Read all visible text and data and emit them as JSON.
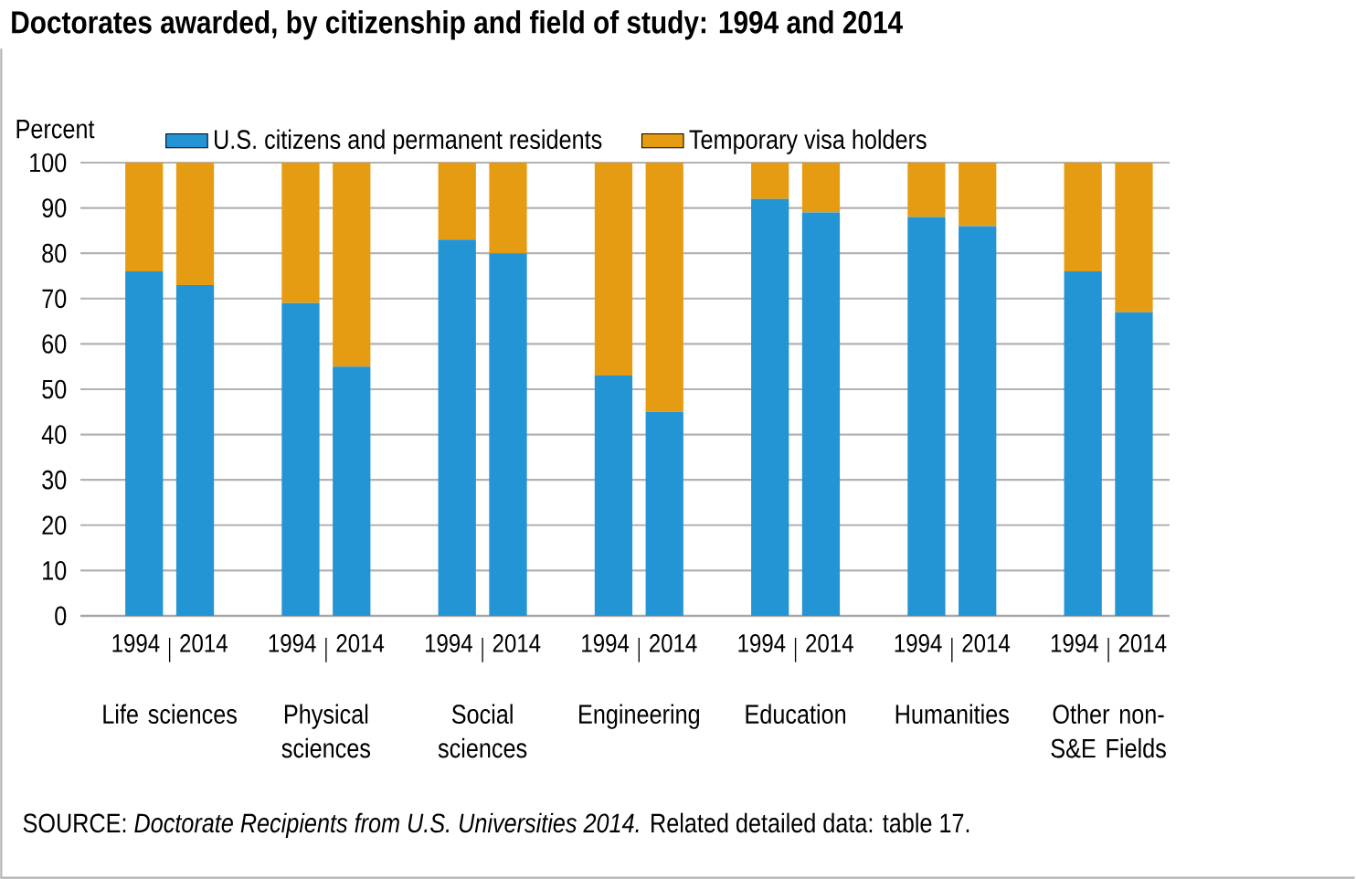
{
  "chart_data": {
    "type": "bar",
    "stacked": true,
    "title": "Doctorates awarded, by citizenship and field of study: 1994 and 2014",
    "ylabel": "Percent",
    "categories": [
      "1994",
      "2014",
      "1994",
      "2014",
      "1994",
      "2014",
      "1994",
      "2014",
      "1994",
      "2014",
      "1994",
      "2014",
      "1994",
      "2014"
    ],
    "series": [
      {
        "name": "U.S. citizens and permanent residents",
        "color": "#2394d4",
        "values": [
          76,
          73,
          69,
          55,
          83,
          80,
          53,
          45,
          92,
          89,
          88,
          86,
          76,
          67
        ]
      },
      {
        "name": "Temporary visa holders",
        "color": "#e69c12",
        "values": [
          24,
          27,
          31,
          45,
          17,
          20,
          47,
          55,
          8,
          11,
          12,
          14,
          24,
          33
        ]
      }
    ],
    "ylim": [
      0,
      100
    ],
    "yticks": [
      0,
      10,
      20,
      30,
      40,
      50,
      60,
      70,
      80,
      90,
      100
    ],
    "grid": "y",
    "legend": "top",
    "annotations": [
      "Life sciences",
      "Physical sciences",
      "Social sciences",
      "Engineering",
      "Education",
      "Humanities",
      "Other non-S&E Fields",
      "SOURCE: *Doctorate Recipients from U.S. Universities 2014.* Related detailed data: table 17."
    ]
  }
}
